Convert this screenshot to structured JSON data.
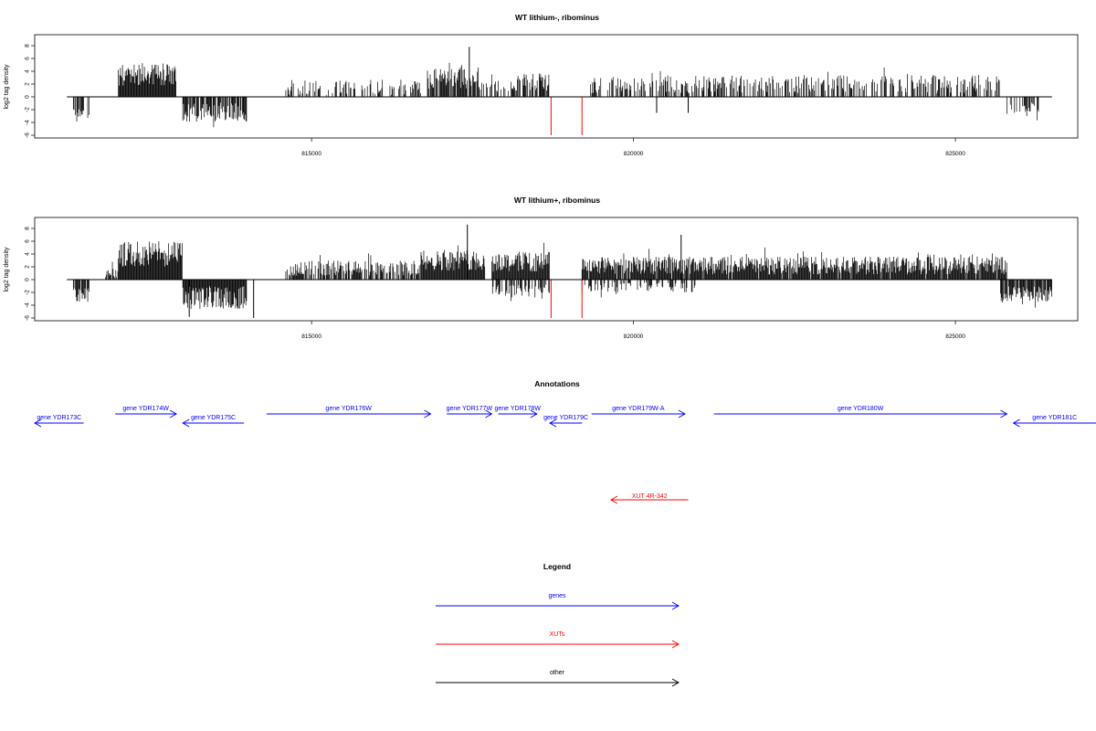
{
  "chart_data": [
    {
      "type": "bar",
      "title": "WT lithium-, ribominus",
      "ylabel": "log2 tag density",
      "xlabel": "",
      "xlim": [
        810700,
        826900
      ],
      "ylim": [
        -6,
        9
      ],
      "yticks": [
        -6,
        -4,
        -2,
        0,
        2,
        4,
        6,
        8
      ],
      "xticks": [
        815000,
        820000,
        825000
      ],
      "xtick_labels": [
        "815000",
        "820000",
        "825000"
      ],
      "grid": false,
      "bar_color": "#000000",
      "highlight_color": "#ff0000",
      "segments": [
        {
          "start": 811300,
          "end": 811550,
          "mean": -2.5,
          "amp": 1.0,
          "density": 0.5
        },
        {
          "start": 812000,
          "end": 812900,
          "mean": 3.5,
          "amp": 1.8,
          "density": 1.0
        },
        {
          "start": 813000,
          "end": 814000,
          "mean": -2.4,
          "amp": 1.5,
          "density": 0.8
        },
        {
          "start": 814600,
          "end": 816700,
          "mean": 1.5,
          "amp": 1.2,
          "density": 0.45
        },
        {
          "start": 816800,
          "end": 817600,
          "mean": 2.8,
          "amp": 1.6,
          "density": 0.9
        },
        {
          "start": 817600,
          "end": 818100,
          "mean": 1.5,
          "amp": 1.0,
          "density": 0.4
        },
        {
          "start": 818100,
          "end": 818700,
          "mean": 2.3,
          "amp": 1.3,
          "density": 0.8
        },
        {
          "start": 819300,
          "end": 820500,
          "mean": 1.8,
          "amp": 1.2,
          "density": 0.45
        },
        {
          "start": 820500,
          "end": 825700,
          "mean": 2.0,
          "amp": 1.4,
          "density": 0.5
        },
        {
          "start": 825800,
          "end": 826300,
          "mean": -1.8,
          "amp": 1.0,
          "density": 0.6
        }
      ],
      "spikes": [
        {
          "x": 817450,
          "y": 7.8,
          "color": "#000000"
        },
        {
          "x": 818720,
          "y": -6.0,
          "color": "#ff0000"
        },
        {
          "x": 819200,
          "y": -6.0,
          "color": "#ff0000"
        },
        {
          "x": 820360,
          "y": -2.5,
          "color": "#000000"
        },
        {
          "x": 820850,
          "y": -2.5,
          "color": "#000000"
        }
      ]
    },
    {
      "type": "bar",
      "title": "WT lithium+, ribominus",
      "ylabel": "log2 tag density",
      "xlabel": "",
      "xlim": [
        810700,
        826900
      ],
      "ylim": [
        -6,
        9
      ],
      "yticks": [
        -6,
        -4,
        -2,
        0,
        2,
        4,
        6,
        8
      ],
      "xticks": [
        815000,
        820000,
        825000
      ],
      "xtick_labels": [
        "815000",
        "820000",
        "825000"
      ],
      "grid": false,
      "bar_color": "#000000",
      "highlight_color": "#ff0000",
      "segments": [
        {
          "start": 811300,
          "end": 811550,
          "mean": -2.5,
          "amp": 1.2,
          "density": 0.9
        },
        {
          "start": 811800,
          "end": 812000,
          "mean": 1.0,
          "amp": 0.8,
          "density": 0.6
        },
        {
          "start": 812000,
          "end": 813000,
          "mean": 4.0,
          "amp": 2.0,
          "density": 1.0
        },
        {
          "start": 813000,
          "end": 814000,
          "mean": -2.8,
          "amp": 1.8,
          "density": 1.0
        },
        {
          "start": 814600,
          "end": 816700,
          "mean": 1.8,
          "amp": 1.2,
          "density": 0.7
        },
        {
          "start": 816700,
          "end": 817700,
          "mean": 3.0,
          "amp": 1.6,
          "density": 1.0
        },
        {
          "start": 817800,
          "end": 818700,
          "mean": 2.8,
          "amp": 1.6,
          "density": 1.0
        },
        {
          "start": 817800,
          "end": 818700,
          "mean": -1.8,
          "amp": 1.0,
          "density": 0.5
        },
        {
          "start": 819200,
          "end": 825800,
          "mean": 2.2,
          "amp": 1.4,
          "density": 0.95
        },
        {
          "start": 819200,
          "end": 821000,
          "mean": -1.2,
          "amp": 0.8,
          "density": 0.4
        },
        {
          "start": 825700,
          "end": 826500,
          "mean": -2.2,
          "amp": 1.2,
          "density": 0.9
        }
      ],
      "spikes": [
        {
          "x": 817420,
          "y": 8.6,
          "color": "#000000"
        },
        {
          "x": 818720,
          "y": -6.0,
          "color": "#ff0000"
        },
        {
          "x": 819200,
          "y": -6.0,
          "color": "#ff0000"
        },
        {
          "x": 820740,
          "y": 7.0,
          "color": "#000000"
        },
        {
          "x": 813100,
          "y": -5.8,
          "color": "#000000"
        },
        {
          "x": 814100,
          "y": -6.0,
          "color": "#000000"
        }
      ]
    }
  ],
  "annotations": {
    "title": "Annotations",
    "genes": [
      {
        "label": "gene YDR173C",
        "from": 810600,
        "to": 811460,
        "strand": "-",
        "row": 1
      },
      {
        "label": "gene YDR174W",
        "from": 811950,
        "to": 812900,
        "strand": "+",
        "row": 0
      },
      {
        "label": "gene YDR175C",
        "from": 813000,
        "to": 813950,
        "strand": "-",
        "row": 1
      },
      {
        "label": "gene YDR176W",
        "from": 814300,
        "to": 816850,
        "strand": "+",
        "row": 0
      },
      {
        "label": "gene YDR177W",
        "from": 817100,
        "to": 817800,
        "strand": "+",
        "row": 0
      },
      {
        "label": "gene YDR178W",
        "from": 817900,
        "to": 818500,
        "strand": "+",
        "row": 0
      },
      {
        "label": "gene YDR179C",
        "from": 818700,
        "to": 819200,
        "strand": "-",
        "row": 1
      },
      {
        "label": "gene YDR179W-A",
        "from": 819350,
        "to": 820800,
        "strand": "+",
        "row": 0
      },
      {
        "label": "gene YDR180W",
        "from": 821250,
        "to": 825800,
        "strand": "+",
        "row": 0
      },
      {
        "label": "gene YDR181C",
        "from": 825900,
        "to": 827200,
        "strand": "-",
        "row": 1
      }
    ],
    "xuts": [
      {
        "label": "XUT 4R-342",
        "from": 819650,
        "to": 820850,
        "strand": "-"
      }
    ]
  },
  "legend": {
    "title": "Legend",
    "items": [
      {
        "label": "genes",
        "color": "#0000ff"
      },
      {
        "label": "XUTs",
        "color": "#ff0000"
      },
      {
        "label": "other",
        "color": "#000000"
      }
    ]
  },
  "colors": {
    "gene": "#0000ff",
    "xut": "#ff0000",
    "other": "#000000",
    "axis": "#000000"
  }
}
